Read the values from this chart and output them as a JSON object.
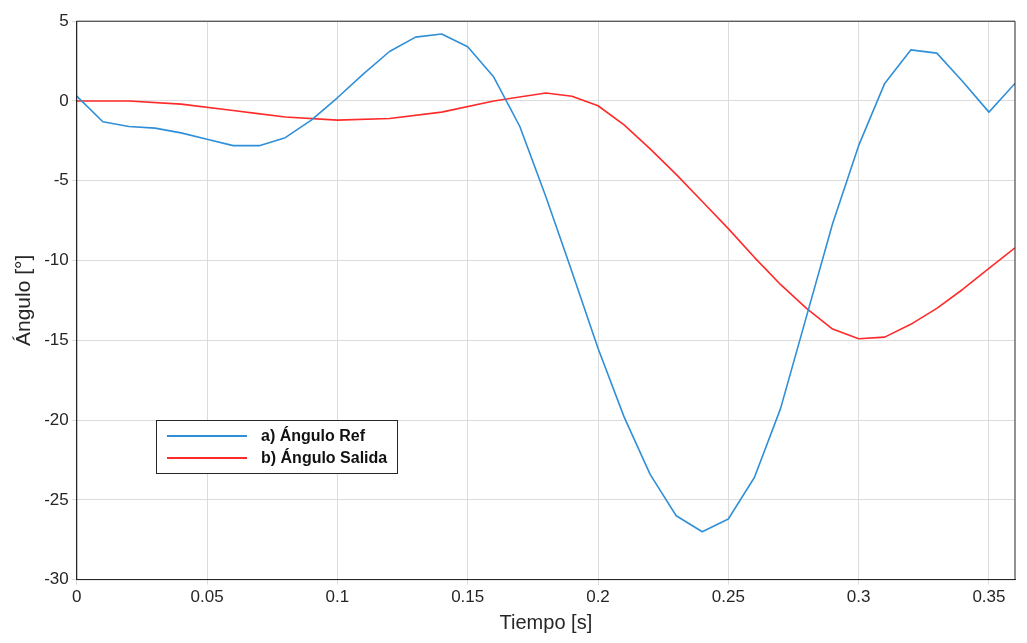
{
  "chart_data": {
    "type": "line",
    "xlabel": "Tiempo [s]",
    "ylabel": "Ángulo [°]",
    "xlim": [
      0,
      0.36
    ],
    "xticks": [
      0,
      0.05,
      0.1,
      0.15,
      0.2,
      0.25,
      0.3,
      0.35
    ],
    "ylim": [
      -30,
      5
    ],
    "yticks": [
      -30,
      -25,
      -20,
      -15,
      -10,
      -5,
      0,
      5
    ],
    "grid": true,
    "legend": "bottom left",
    "marker": "none",
    "line_style": "solid",
    "series": [
      {
        "name": "a) Ángulo Ref",
        "color": "#2f8fd8",
        "x": [
          0,
          0.01,
          0.02,
          0.03,
          0.04,
          0.05,
          0.06,
          0.07,
          0.08,
          0.09,
          0.1,
          0.11,
          0.12,
          0.13,
          0.14,
          0.15,
          0.16,
          0.17,
          0.18,
          0.19,
          0.2,
          0.21,
          0.22,
          0.23,
          0.24,
          0.25,
          0.26,
          0.27,
          0.28,
          0.29,
          0.3,
          0.31,
          0.32,
          0.33,
          0.34,
          0.35,
          0.36
        ],
        "values": [
          0.3,
          -1.3,
          -1.6,
          -1.7,
          -2.0,
          -2.4,
          -2.8,
          -2.8,
          -2.3,
          -1.2,
          0.2,
          1.7,
          3.1,
          4.0,
          4.2,
          3.4,
          1.5,
          -1.6,
          -6.0,
          -10.7,
          -15.5,
          -19.8,
          -23.4,
          -26.0,
          -27.0,
          -26.2,
          -23.6,
          -19.3,
          -13.5,
          -7.7,
          -2.8,
          1.1,
          3.2,
          3.0,
          1.2,
          -0.7,
          1.1
        ]
      },
      {
        "name": "b) Ángulo Salida",
        "color": "#ff2a2a",
        "x": [
          0,
          0.02,
          0.04,
          0.06,
          0.08,
          0.1,
          0.12,
          0.14,
          0.16,
          0.18,
          0.19,
          0.2,
          0.21,
          0.22,
          0.23,
          0.24,
          0.25,
          0.26,
          0.27,
          0.28,
          0.29,
          0.3,
          0.31,
          0.32,
          0.33,
          0.34,
          0.35,
          0.36
        ],
        "values": [
          0,
          0,
          -0.2,
          -0.6,
          -1.0,
          -1.2,
          -1.1,
          -0.7,
          0.0,
          0.5,
          0.3,
          -0.3,
          -1.5,
          -3.0,
          -4.6,
          -6.3,
          -8.0,
          -9.8,
          -11.5,
          -13.0,
          -14.3,
          -14.9,
          -14.8,
          -14.0,
          -13.0,
          -11.8,
          -10.5,
          -9.2
        ]
      }
    ]
  }
}
